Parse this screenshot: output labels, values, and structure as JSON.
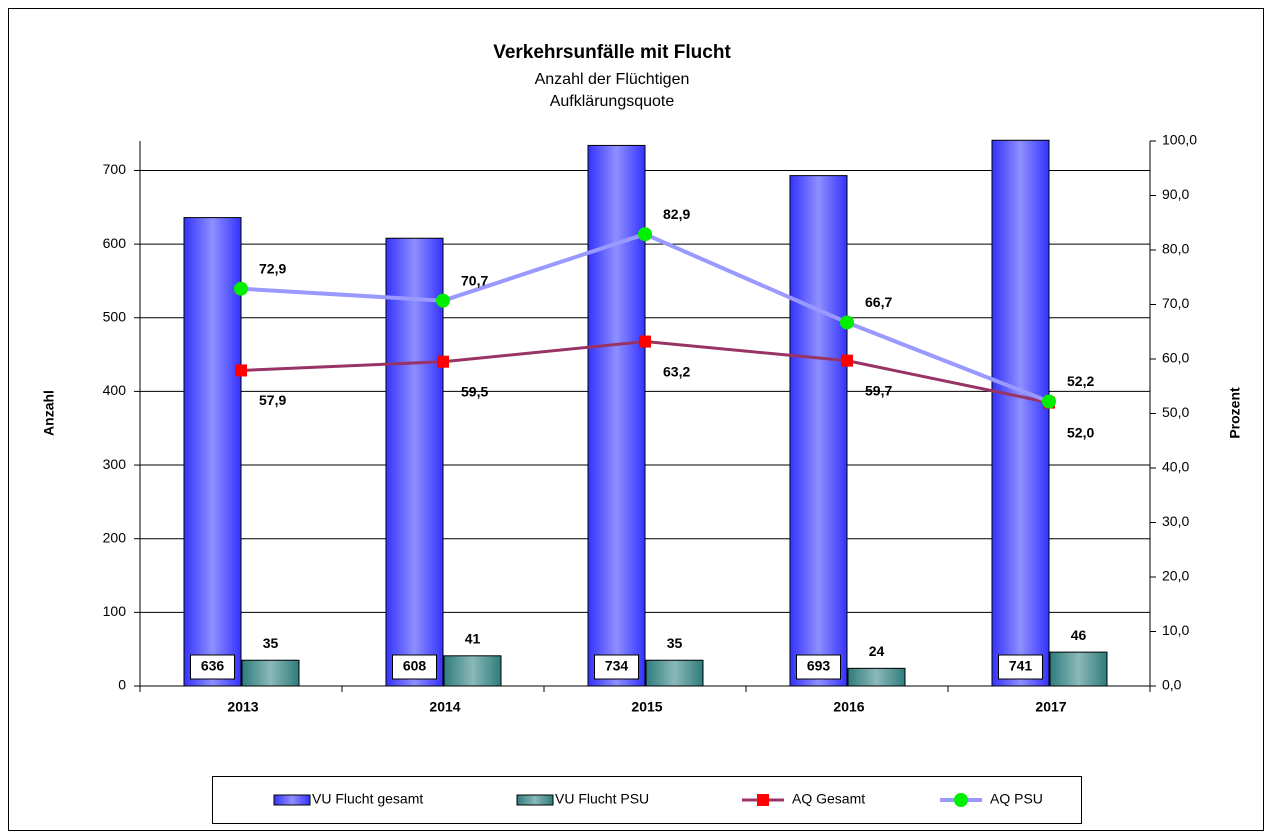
{
  "chart_data": {
    "type": "bar",
    "title": "Verkehrsunfälle mit Flucht",
    "subtitle": [
      "Anzahl der Flüchtigen",
      "Aufklärungsquote"
    ],
    "y_label": "Anzahl",
    "y2_label": "Prozent",
    "categories": [
      "2013",
      "2014",
      "2015",
      "2016",
      "2017"
    ],
    "ylim": [
      0,
      740
    ],
    "yticks": [
      0,
      100,
      200,
      300,
      400,
      500,
      600,
      700
    ],
    "y2lim": [
      0,
      100
    ],
    "y2ticks": [
      {
        "value": 0,
        "label": "0,0"
      },
      {
        "value": 10,
        "label": "10,0"
      },
      {
        "value": 20,
        "label": "20,0"
      },
      {
        "value": 30,
        "label": "30,0"
      },
      {
        "value": 40,
        "label": "40,0"
      },
      {
        "value": 50,
        "label": "50,0"
      },
      {
        "value": 60,
        "label": "60,0"
      },
      {
        "value": 70,
        "label": "70,0"
      },
      {
        "value": 80,
        "label": "80,0"
      },
      {
        "value": 90,
        "label": "90,0"
      },
      {
        "value": 100,
        "label": "100,0"
      }
    ],
    "grid": true,
    "legend": "bottom",
    "series": [
      {
        "name": "VU Flucht gesamt",
        "type": "bar",
        "color": "#3333ff",
        "values": [
          636,
          608,
          734,
          693,
          741
        ]
      },
      {
        "name": "VU Flucht PSU",
        "type": "bar",
        "color": "#2e7d7d",
        "values": [
          35,
          41,
          35,
          24,
          46
        ]
      },
      {
        "name": "AQ Gesamt",
        "type": "line",
        "axis": "y2",
        "color": "#993366",
        "marker": "square",
        "marker_color": "#ff0000",
        "values": [
          57.9,
          59.5,
          63.2,
          59.7,
          52.0
        ],
        "value_labels": [
          "57,9",
          "59,5",
          "63,2",
          "59,7",
          "52,0"
        ]
      },
      {
        "name": "AQ PSU",
        "type": "line",
        "axis": "y2",
        "color": "#9999ff",
        "marker": "circle",
        "marker_color": "#00ee00",
        "values": [
          72.9,
          70.7,
          82.9,
          66.7,
          52.2
        ],
        "value_labels": [
          "72,9",
          "70,7",
          "82,9",
          "66,7",
          "52,2"
        ]
      }
    ]
  }
}
